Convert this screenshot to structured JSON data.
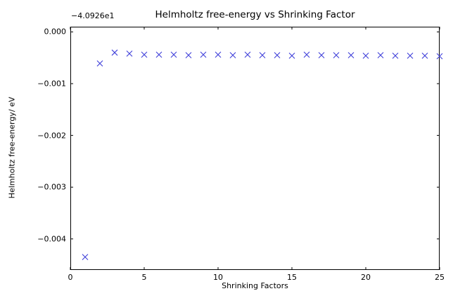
{
  "chart_data": {
    "type": "scatter",
    "marker": "x",
    "marker_color": "#4040d9",
    "axis_color": "#000000",
    "title": "Helmholtz free-energy vs Shrinking Factor",
    "xlabel": "Shrinking Factors",
    "ylabel": "Helmholtz free-energy/ eV",
    "offset_text": "−4.0926e1",
    "y_offset_value": -40.926,
    "x": [
      1,
      2,
      3,
      4,
      5,
      6,
      7,
      8,
      9,
      10,
      11,
      12,
      13,
      14,
      15,
      16,
      17,
      18,
      19,
      20,
      21,
      22,
      23,
      24,
      25
    ],
    "y": [
      -0.00435,
      -0.00061,
      -0.0004,
      -0.00042,
      -0.00044,
      -0.00044,
      -0.00044,
      -0.00045,
      -0.00044,
      -0.00044,
      -0.00045,
      -0.00044,
      -0.00045,
      -0.00045,
      -0.00046,
      -0.00044,
      -0.00045,
      -0.00045,
      -0.00045,
      -0.00046,
      -0.00045,
      -0.00046,
      -0.00046,
      -0.00046,
      -0.00047
    ],
    "xlim": [
      0,
      25
    ],
    "ylim": [
      -0.0046,
      0.0001
    ],
    "xticks": [
      0,
      5,
      10,
      15,
      20,
      25
    ],
    "xtick_labels": [
      "0",
      "5",
      "10",
      "15",
      "20",
      "25"
    ],
    "yticks": [
      0,
      -0.001,
      -0.002,
      -0.003,
      -0.004
    ],
    "ytick_labels": [
      "0.000",
      "−0.001",
      "−0.002",
      "−0.003",
      "−0.004"
    ],
    "grid": false,
    "legend": null
  }
}
